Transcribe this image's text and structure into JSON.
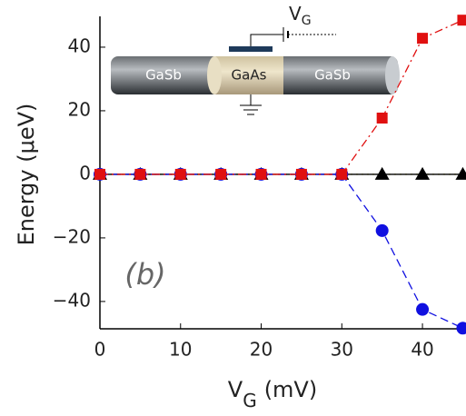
{
  "chart_data": {
    "type": "line",
    "y_label": "Energy (μeV)",
    "x_label": {
      "main": "V",
      "subscript": "G",
      "unit": "(mV)"
    },
    "annotation": "(b)",
    "inset": {
      "left": "GaSb",
      "middle": "GaAs",
      "right": "GaSb",
      "gate": {
        "main": "V",
        "subscript": "G"
      }
    },
    "x": [
      0,
      5,
      10,
      15,
      20,
      25,
      30,
      35,
      40,
      45
    ],
    "series": [
      {
        "color": "#c8c040",
        "marker": "diamond",
        "dash": "2,4",
        "values": [
          0,
          0,
          0,
          0,
          0,
          0,
          0,
          0,
          0,
          0
        ]
      },
      {
        "color": "#000000",
        "marker": "triangle",
        "dash": "none",
        "values": [
          0,
          0,
          0,
          0,
          0,
          0,
          0,
          0,
          0,
          0
        ]
      },
      {
        "color": "#1010e0",
        "marker": "circle",
        "dash": "9,5",
        "values": [
          0,
          0,
          0,
          0,
          0,
          0,
          0,
          -17.7,
          -42.5,
          -48.4
        ]
      },
      {
        "color": "#e01010",
        "marker": "square",
        "dash": "9,4,2,4",
        "values": [
          0,
          0,
          0,
          0,
          0,
          0,
          0,
          17.7,
          42.8,
          48.5
        ]
      }
    ],
    "xlim": [
      0,
      45.4
    ],
    "ylim": [
      -48.6,
      49.7
    ],
    "xticks": [
      0,
      10,
      20,
      30,
      40
    ],
    "yticks": [
      {
        "value": -40,
        "label": "−40"
      },
      {
        "value": -20,
        "label": "−20"
      },
      0,
      20,
      40
    ]
  }
}
